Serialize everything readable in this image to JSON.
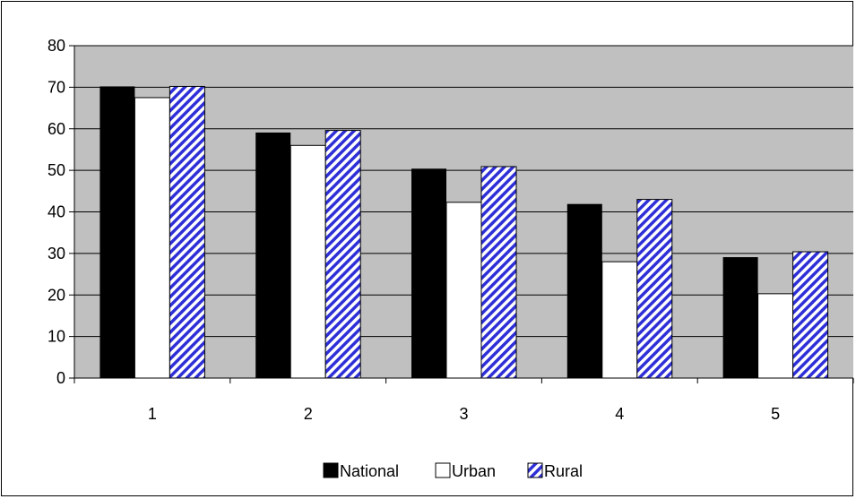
{
  "chart_data": {
    "type": "bar",
    "title": "",
    "xlabel": "",
    "ylabel": "",
    "categories": [
      "1",
      "2",
      "3",
      "4",
      "5"
    ],
    "ylim": [
      0,
      80
    ],
    "ytick_step": 10,
    "y_ticks": [
      "0",
      "10",
      "20",
      "30",
      "40",
      "50",
      "60",
      "70",
      "80"
    ],
    "grid": true,
    "legend_position": "bottom",
    "series": [
      {
        "name": "National",
        "values": [
          70.2,
          59.1,
          50.4,
          41.9,
          29.1
        ]
      },
      {
        "name": "Urban",
        "values": [
          67.5,
          56.0,
          42.3,
          28.0,
          20.3
        ]
      },
      {
        "name": "Rural",
        "values": [
          70.2,
          59.6,
          50.9,
          43.0,
          30.4
        ]
      }
    ],
    "colors": {
      "plot_background": "#c0c0c0",
      "national": "#000000",
      "urban": "#ffffff",
      "rural_base": "#ffffff",
      "rural_hatch": "#2f2fd8"
    }
  }
}
